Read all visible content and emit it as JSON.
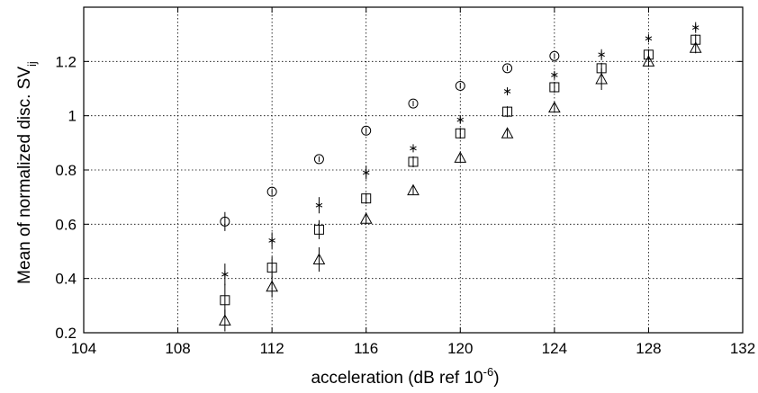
{
  "chart_data": {
    "type": "scatter",
    "title": "",
    "xlabel": "acceleration (dB ref 10",
    "xlabel_superscript": "-6",
    "xlabel_suffix": ")",
    "ylabel": "Mean of normalized disc. SV",
    "ylabel_subscript": "ij",
    "xlim": [
      104,
      132
    ],
    "ylim": [
      0.2,
      1.4
    ],
    "xticks": [
      104,
      108,
      112,
      116,
      120,
      124,
      128,
      132
    ],
    "yticks": [
      0.2,
      0.4,
      0.6,
      0.8,
      1,
      1.2
    ],
    "xtick_labels": [
      "104",
      "108",
      "112",
      "116",
      "120",
      "124",
      "128",
      "132"
    ],
    "ytick_labels": [
      "0.2",
      "0.4",
      "0.6",
      "0.8",
      "1",
      "1.2"
    ],
    "grid": true,
    "grid_style": "dotted",
    "series": [
      {
        "marker": "circle",
        "x": [
          110,
          112,
          114,
          116,
          118,
          120,
          122,
          124
        ],
        "y": [
          0.61,
          0.72,
          0.84,
          0.945,
          1.045,
          1.11,
          1.175,
          1.22
        ],
        "err": [
          0.035,
          0.01,
          0.01,
          0.01,
          0.01,
          0.01,
          0.01,
          0.01
        ]
      },
      {
        "marker": "asterisk",
        "x": [
          110,
          112,
          114,
          116,
          118,
          120,
          122,
          124,
          126,
          128,
          130
        ],
        "y": [
          0.415,
          0.54,
          0.67,
          0.79,
          0.88,
          0.985,
          1.09,
          1.15,
          1.225,
          1.285,
          1.325
        ],
        "err": [
          0.04,
          0.03,
          0.03,
          0.025,
          0.015,
          0.015,
          0.015,
          0.015,
          0.02,
          0.015,
          0.02
        ]
      },
      {
        "marker": "square",
        "x": [
          110,
          112,
          114,
          116,
          118,
          120,
          122,
          124,
          126,
          128,
          130
        ],
        "y": [
          0.32,
          0.44,
          0.58,
          0.695,
          0.83,
          0.935,
          1.015,
          1.105,
          1.175,
          1.225,
          1.28
        ],
        "err": [
          0.06,
          0.04,
          0.035,
          0.02,
          0.02,
          0.02,
          0.02,
          0.02,
          0.02,
          0.02,
          0.02
        ]
      },
      {
        "marker": "triangle",
        "x": [
          110,
          112,
          114,
          116,
          118,
          120,
          122,
          124,
          126,
          128,
          130
        ],
        "y": [
          0.245,
          0.37,
          0.47,
          0.62,
          0.725,
          0.845,
          0.935,
          1.03,
          1.135,
          1.2,
          1.25
        ],
        "err": [
          0.04,
          0.04,
          0.045,
          0.02,
          0.015,
          0.015,
          0.015,
          0.015,
          0.04,
          0.02,
          0.02
        ]
      }
    ]
  }
}
